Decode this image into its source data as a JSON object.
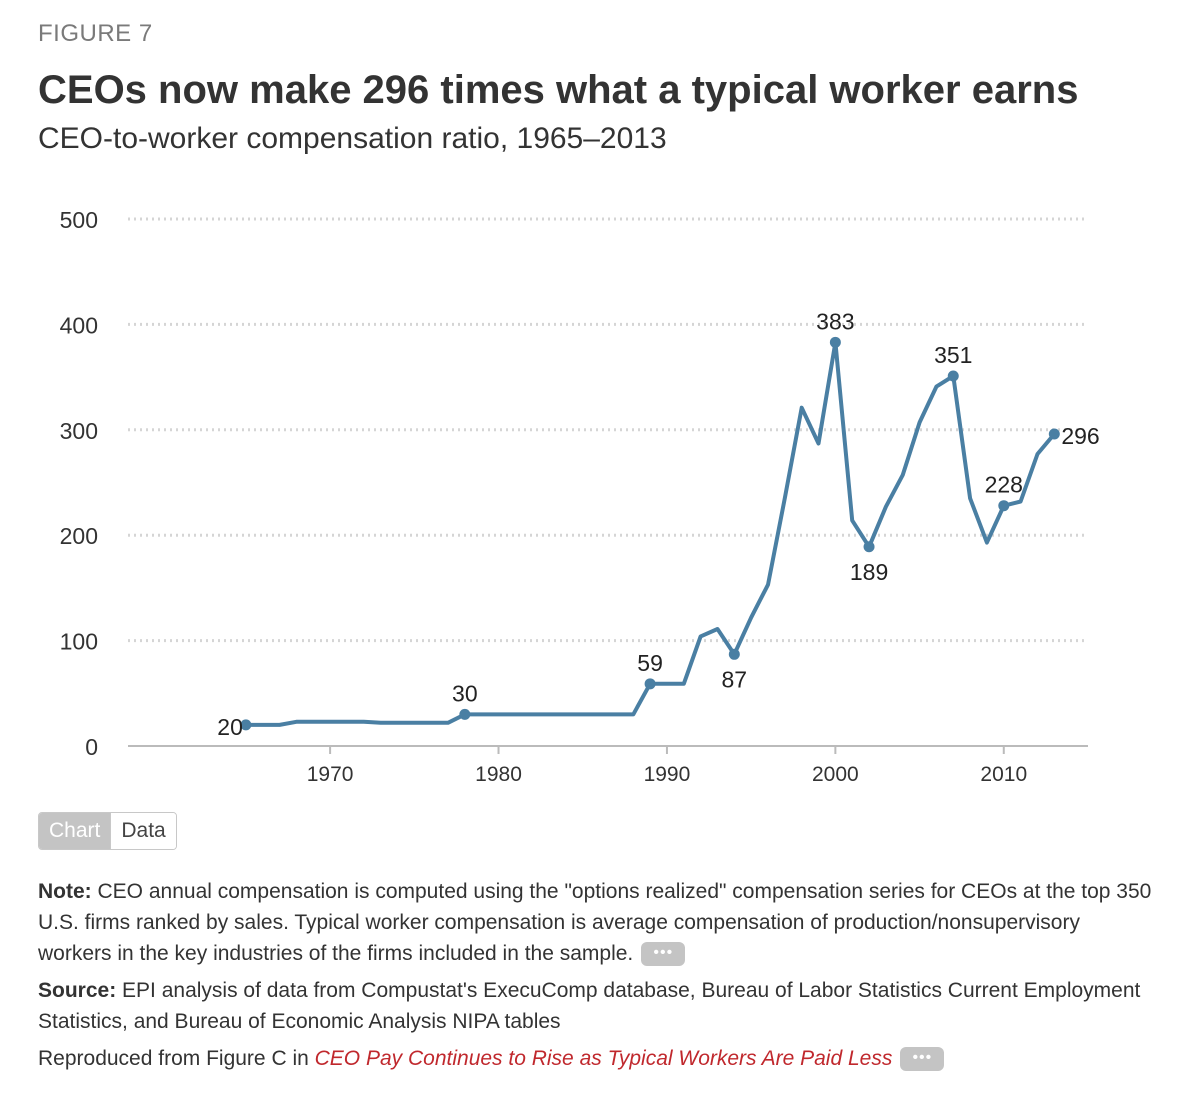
{
  "header": {
    "figure_label": "FIGURE 7",
    "title": "CEOs now make 296 times what a typical worker earns",
    "subtitle": "CEO-to-worker compensation ratio, 1965–2013"
  },
  "colors": {
    "line": "#4a7fa3",
    "grid": "#d5d5d5",
    "axis": "#bbbbbb",
    "link": "#c0282d"
  },
  "chart_data": {
    "type": "line",
    "title": "CEOs now make 296 times what a typical worker earns",
    "subtitle": "CEO-to-worker compensation ratio, 1965–2013",
    "xlabel": "",
    "ylabel": "",
    "xlim": [
      1958,
      2015
    ],
    "ylim": [
      0,
      500
    ],
    "grid": true,
    "y_ticks": [
      0,
      100,
      200,
      300,
      400,
      500
    ],
    "x_ticks": [
      1970,
      1980,
      1990,
      2000,
      2010
    ],
    "series": [
      {
        "name": "CEO-to-worker compensation ratio",
        "x": [
          1965,
          1966,
          1967,
          1968,
          1969,
          1970,
          1971,
          1972,
          1973,
          1974,
          1975,
          1976,
          1977,
          1978,
          1979,
          1980,
          1981,
          1982,
          1983,
          1984,
          1985,
          1986,
          1987,
          1988,
          1989,
          1990,
          1991,
          1992,
          1993,
          1994,
          1995,
          1996,
          1997,
          1998,
          1999,
          2000,
          2001,
          2002,
          2003,
          2004,
          2005,
          2006,
          2007,
          2008,
          2009,
          2010,
          2011,
          2012,
          2013
        ],
        "values": [
          20,
          20,
          20,
          23,
          23,
          23,
          23,
          23,
          22,
          22,
          22,
          22,
          22,
          30,
          30,
          30,
          30,
          30,
          30,
          30,
          30,
          30,
          30,
          30,
          59,
          59,
          59,
          104,
          111,
          87,
          122,
          153,
          235,
          321,
          287,
          383,
          214,
          189,
          227,
          257,
          307,
          341,
          351,
          235,
          193,
          228,
          232,
          277,
          296
        ]
      }
    ],
    "annotations": [
      {
        "x": 1965,
        "y": 20,
        "label": "20",
        "pos": "left"
      },
      {
        "x": 1978,
        "y": 30,
        "label": "30",
        "pos": "above"
      },
      {
        "x": 1989,
        "y": 59,
        "label": "59",
        "pos": "above"
      },
      {
        "x": 1994,
        "y": 87,
        "label": "87",
        "pos": "below"
      },
      {
        "x": 2000,
        "y": 383,
        "label": "383",
        "pos": "above"
      },
      {
        "x": 2002,
        "y": 189,
        "label": "189",
        "pos": "below"
      },
      {
        "x": 2007,
        "y": 351,
        "label": "351",
        "pos": "above"
      },
      {
        "x": 2010,
        "y": 228,
        "label": "228",
        "pos": "above"
      },
      {
        "x": 2013,
        "y": 296,
        "label": "296",
        "pos": "right"
      }
    ]
  },
  "toggle": {
    "chart_label": "Chart",
    "data_label": "Data"
  },
  "notes": {
    "note_label": "Note:",
    "note_text": " CEO annual compensation is computed using the \"options realized\" compensation series for CEOs at the top 350 U.S. firms ranked by sales. Typical worker compensation is average compensation of production/nonsupervisory workers in the key industries of the firms included in the sample.",
    "more_label": "•••",
    "source_label": "Source:",
    "source_text": " EPI analysis of data from Compustat's ExecuComp database, Bureau of Labor Statistics Current Employment Statistics, and Bureau of Economic Analysis NIPA tables",
    "reproduced_text": "Reproduced from Figure C in ",
    "reproduced_link": "CEO Pay Continues to Rise as Typical Workers Are Paid Less"
  }
}
